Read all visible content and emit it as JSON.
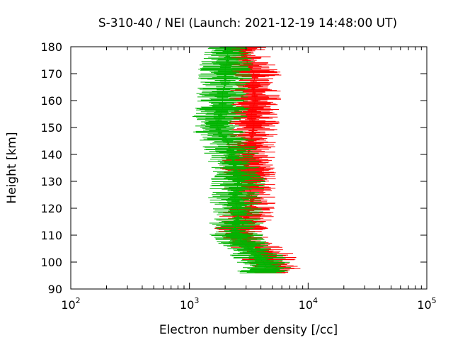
{
  "chart_data": {
    "type": "line",
    "title": "S-310-40 / NEI (Launch: 2021-12-19 14:48:00 UT)",
    "xlabel": "Electron number density [/cc]",
    "ylabel": "Height [km]",
    "x_scale": "log",
    "xlim": [
      100,
      100000
    ],
    "ylim": [
      90,
      180
    ],
    "x_ticks": [
      {
        "base": "10",
        "exp": "2",
        "value": 100
      },
      {
        "base": "10",
        "exp": "3",
        "value": 1000
      },
      {
        "base": "10",
        "exp": "4",
        "value": 10000
      },
      {
        "base": "10",
        "exp": "5",
        "value": 100000
      }
    ],
    "y_ticks": [
      "90",
      "100",
      "110",
      "120",
      "130",
      "140",
      "150",
      "160",
      "170",
      "180"
    ],
    "grid": false,
    "legend": "none",
    "series": [
      {
        "color": "#ff0000",
        "points": [
          [
            96.0,
            4800
          ],
          [
            98.0,
            5500
          ],
          [
            100.0,
            4500
          ],
          [
            102.0,
            4800
          ],
          [
            104.0,
            4200
          ],
          [
            106.0,
            3500
          ],
          [
            108.0,
            3000
          ],
          [
            110.0,
            2600
          ],
          [
            112.0,
            2700
          ],
          [
            115.0,
            2900
          ],
          [
            118.0,
            3100
          ],
          [
            121.0,
            3300
          ],
          [
            124.0,
            3400
          ],
          [
            127.0,
            3200
          ],
          [
            130.0,
            3300
          ],
          [
            133.0,
            3200
          ],
          [
            136.0,
            3000
          ],
          [
            139.0,
            3100
          ],
          [
            142.0,
            3200
          ],
          [
            145.0,
            3300
          ],
          [
            148.0,
            3400
          ],
          [
            151.0,
            3500
          ],
          [
            154.0,
            3300
          ],
          [
            157.0,
            3400
          ],
          [
            160.0,
            3600
          ],
          [
            163.0,
            3500
          ],
          [
            166.0,
            3400
          ],
          [
            169.0,
            3600
          ],
          [
            172.0,
            3300
          ],
          [
            175.0,
            3000
          ],
          [
            178.0,
            2800
          ],
          [
            180.0,
            2700
          ]
        ]
      },
      {
        "color": "#00b400",
        "points": [
          [
            96.0,
            4000
          ],
          [
            98.0,
            4500
          ],
          [
            100.0,
            4200
          ],
          [
            102.0,
            3800
          ],
          [
            104.0,
            3400
          ],
          [
            106.0,
            3000
          ],
          [
            108.0,
            2700
          ],
          [
            110.0,
            2500
          ],
          [
            112.0,
            2400
          ],
          [
            115.0,
            2500
          ],
          [
            118.0,
            2600
          ],
          [
            121.0,
            2500
          ],
          [
            124.0,
            2400
          ],
          [
            127.0,
            2500
          ],
          [
            130.0,
            2600
          ],
          [
            133.0,
            2500
          ],
          [
            136.0,
            2400
          ],
          [
            139.0,
            2300
          ],
          [
            142.0,
            2200
          ],
          [
            145.0,
            2100
          ],
          [
            148.0,
            1800
          ],
          [
            151.0,
            1700
          ],
          [
            154.0,
            1800
          ],
          [
            157.0,
            1900
          ],
          [
            160.0,
            1900
          ],
          [
            163.0,
            1900
          ],
          [
            166.0,
            2000
          ],
          [
            169.0,
            2000
          ],
          [
            172.0,
            2000
          ],
          [
            175.0,
            2100
          ],
          [
            178.0,
            2100
          ],
          [
            180.0,
            2100
          ]
        ]
      }
    ]
  }
}
